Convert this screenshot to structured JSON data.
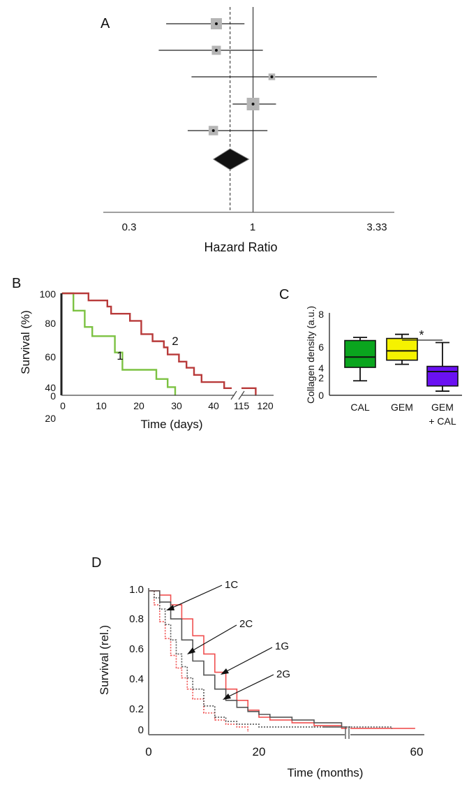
{
  "colors": {
    "green": "#7cc242",
    "red": "#b83a3a",
    "box_green": "#0aa51e",
    "box_yellow": "#f5f200",
    "box_purple": "#6a11f2",
    "d_red": "#f05050",
    "d_gray": "#555555",
    "ci_gray": "#b5b5b5"
  },
  "chart_data": [
    {
      "panel_label": "A",
      "type": "forest",
      "xlabel": "Hazard Ratio",
      "x_ticks": [
        "0.3",
        "1",
        "3.33"
      ],
      "x_scale": "log",
      "xlim": [
        0.3,
        3.33
      ],
      "reference_line": 1,
      "pooled_dashed_line": 0.8,
      "studies": [
        {
          "hr": 0.7,
          "lo": 0.43,
          "hi": 0.92,
          "weight": 1.0
        },
        {
          "hr": 0.7,
          "lo": 0.4,
          "hi": 1.1,
          "weight": 0.7
        },
        {
          "hr": 1.2,
          "lo": 0.55,
          "hi": 3.33,
          "weight": 0.35
        },
        {
          "hr": 1.0,
          "lo": 0.82,
          "hi": 1.25,
          "weight": 1.2
        },
        {
          "hr": 0.68,
          "lo": 0.53,
          "hi": 1.15,
          "weight": 0.75
        }
      ],
      "pooled": {
        "hr": 0.8,
        "lo": 0.68,
        "hi": 0.96
      }
    },
    {
      "panel_label": "B",
      "type": "line",
      "step": true,
      "xlabel": "Time (days)",
      "ylabel": "Survival (%)",
      "ylim": [
        0,
        100
      ],
      "y_ticks": [
        "0",
        "20",
        "40",
        "60",
        "80",
        "100"
      ],
      "x_ticks": [
        "0",
        "10",
        "20",
        "30",
        "40",
        "115",
        "120"
      ],
      "axis_break": [
        45,
        114
      ],
      "series": [
        {
          "name": "1",
          "color": "#7cc242",
          "x": [
            0,
            3,
            6,
            8,
            14,
            16,
            18,
            25,
            28,
            30
          ],
          "y": [
            100,
            83,
            67,
            58,
            42,
            25,
            25,
            16,
            8,
            0
          ]
        },
        {
          "name": "2",
          "color": "#b83a3a",
          "x": [
            0,
            7,
            12,
            13,
            18,
            21,
            24,
            27,
            28,
            31,
            33,
            35,
            37,
            43,
            116,
            118
          ],
          "y": [
            100,
            93,
            87,
            80,
            73,
            60,
            53,
            47,
            40,
            33,
            27,
            20,
            13,
            7,
            7,
            0
          ]
        }
      ]
    },
    {
      "panel_label": "C",
      "type": "box",
      "ylabel": "Collagen density (a.u.)",
      "ylim": [
        0,
        8
      ],
      "y_ticks": [
        "0",
        "2",
        "4",
        "6",
        "8"
      ],
      "categories": [
        "CAL",
        "GEM",
        "GEM",
        "+ CAL"
      ],
      "boxes": [
        {
          "label": "CAL",
          "min": 1.4,
          "q1": 2.7,
          "median": 3.7,
          "q3": 5.3,
          "max": 5.6,
          "color": "#0aa51e"
        },
        {
          "label": "GEM",
          "min": 3.0,
          "q1": 3.4,
          "median": 4.3,
          "q3": 5.5,
          "max": 5.9,
          "color": "#f5f200"
        },
        {
          "label": "GEM + CAL",
          "min": 0.4,
          "q1": 0.9,
          "median": 2.3,
          "q3": 2.8,
          "max": 5.1,
          "color": "#6a11f2"
        }
      ],
      "significance": "*"
    },
    {
      "panel_label": "D",
      "type": "line",
      "step": true,
      "xlabel": "Time (months)",
      "ylabel": "Survival (rel.)",
      "ylim": [
        0,
        1.0
      ],
      "y_ticks": [
        "0",
        "0.2",
        "0.4",
        "0.6",
        "0.8",
        "1.0"
      ],
      "x_ticks": [
        "0",
        "20",
        "60"
      ],
      "axis_break": [
        36,
        46
      ],
      "series": [
        {
          "name": "1G",
          "color": "#f05050",
          "style": "solid",
          "x": [
            0,
            2,
            4,
            6,
            8,
            10,
            12,
            14,
            16,
            18,
            20,
            22,
            26,
            30,
            35,
            60
          ],
          "y": [
            1.0,
            0.97,
            0.9,
            0.8,
            0.68,
            0.55,
            0.42,
            0.3,
            0.22,
            0.15,
            0.1,
            0.08,
            0.06,
            0.04,
            0.02,
            0.02
          ]
        },
        {
          "name": "2G",
          "color": "#555555",
          "style": "solid",
          "x": [
            0,
            2,
            4,
            6,
            8,
            10,
            12,
            14,
            16,
            18,
            20,
            22,
            26,
            30,
            35
          ],
          "y": [
            1.0,
            0.92,
            0.8,
            0.65,
            0.5,
            0.4,
            0.3,
            0.22,
            0.17,
            0.14,
            0.12,
            0.1,
            0.08,
            0.06,
            0.03
          ]
        },
        {
          "name": "1C",
          "color": "#f05050",
          "style": "dotted",
          "x": [
            0,
            1,
            2,
            3,
            4,
            5,
            6,
            7,
            8,
            10,
            12,
            14,
            16,
            18
          ],
          "y": [
            1.0,
            0.9,
            0.78,
            0.66,
            0.54,
            0.45,
            0.38,
            0.3,
            0.23,
            0.13,
            0.08,
            0.05,
            0.03,
            0.0
          ]
        },
        {
          "name": "2C",
          "color": "#555555",
          "style": "dotted",
          "x": [
            0,
            1,
            2,
            3,
            4,
            5,
            6,
            7,
            8,
            10,
            12,
            14,
            16,
            20,
            30,
            40,
            55
          ],
          "y": [
            1.0,
            0.95,
            0.87,
            0.76,
            0.65,
            0.55,
            0.46,
            0.38,
            0.3,
            0.18,
            0.1,
            0.07,
            0.05,
            0.03,
            0.03,
            0.03,
            0.02
          ]
        }
      ],
      "annotations": [
        "1C",
        "2C",
        "1G",
        "2G"
      ]
    }
  ]
}
